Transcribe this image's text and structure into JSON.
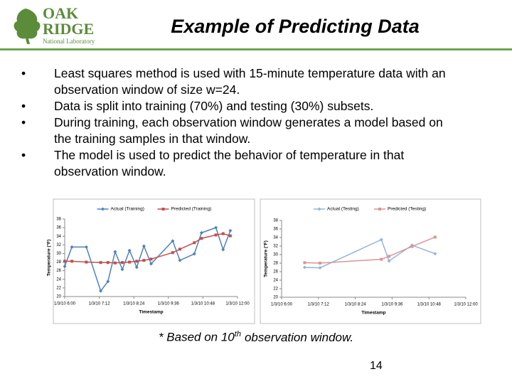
{
  "header": {
    "logo": {
      "name_top": "OAK",
      "name_bottom": "RIDGE",
      "subtitle": "National Laboratory"
    },
    "title": "Example of Predicting Data"
  },
  "bullets": [
    "Least squares method is used with 15-minute temperature data with an observation window of size w=24.",
    "Data is split into training (70%) and testing (30%) subsets.",
    "During training, each observation window generates a model based on the training samples in that window.",
    "The model is used to predict the behavior of temperature in that observation window."
  ],
  "chart_data": [
    {
      "type": "line",
      "x_label": "Timestamp",
      "y_label": "Temperature (°F)",
      "x": [
        6.0,
        6.25,
        6.75,
        7.25,
        7.5,
        7.75,
        8.0,
        8.25,
        8.5,
        8.75,
        9.0,
        9.75,
        10.0,
        10.5,
        10.75,
        11.25,
        11.5,
        11.75
      ],
      "series": [
        {
          "name": "Actual (Training)",
          "color": "#4f81bd",
          "marker": "diamond",
          "values": [
            27.0,
            31.5,
            31.5,
            21.3,
            23.5,
            30.4,
            26.3,
            30.7,
            26.8,
            31.7,
            27.6,
            32.9,
            28.4,
            29.9,
            34.8,
            36.0,
            30.9,
            35.3
          ]
        },
        {
          "name": "Predicted (Training)",
          "color": "#c0504d",
          "marker": "square",
          "values": [
            28.2,
            28.2,
            28.0,
            27.9,
            27.9,
            27.8,
            27.9,
            28.0,
            28.2,
            28.4,
            28.7,
            30.2,
            31.0,
            32.5,
            33.5,
            34.3,
            34.6,
            34.1
          ]
        }
      ],
      "xlim": [
        6,
        12
      ],
      "xticks": [
        {
          "value": 6,
          "label": "1/3/10 6:00"
        },
        {
          "value": 7.2,
          "label": "1/3/10 7:12"
        },
        {
          "value": 8.4,
          "label": "1/3/10 8:24"
        },
        {
          "value": 9.6,
          "label": "1/3/10 9:36"
        },
        {
          "value": 10.8,
          "label": "1/3/10 10:48"
        },
        {
          "value": 12,
          "label": "1/3/10 12:00"
        }
      ],
      "ylim": [
        20,
        38
      ],
      "yticks": [
        20,
        22,
        24,
        26,
        28,
        30,
        32,
        34,
        36,
        38
      ],
      "legend": "top"
    },
    {
      "type": "line",
      "x_label": "Timestamp",
      "y_label": "Temperature (°F)",
      "x": [
        6.75,
        7.25,
        9.25,
        9.5,
        10.25,
        11.0
      ],
      "series": [
        {
          "name": "Actual (Testing)",
          "color": "#95b3d7",
          "marker": "diamond",
          "values": [
            27.0,
            26.9,
            33.5,
            28.5,
            32.2,
            30.2
          ]
        },
        {
          "name": "Predicted (Testing)",
          "color": "#d99694",
          "marker": "square",
          "values": [
            28.1,
            28.0,
            28.9,
            29.6,
            31.9,
            34.1
          ]
        }
      ],
      "xlim": [
        6,
        12
      ],
      "xticks": [
        {
          "value": 6,
          "label": "1/3/10 6:00"
        },
        {
          "value": 7.2,
          "label": "1/3/10 7:12"
        },
        {
          "value": 8.4,
          "label": "1/3/10 8:24"
        },
        {
          "value": 9.6,
          "label": "1/3/10 9:36"
        },
        {
          "value": 10.8,
          "label": "1/3/10 10:48"
        },
        {
          "value": 12,
          "label": "1/3/10 12:00"
        }
      ],
      "ylim": [
        20,
        38
      ],
      "yticks": [
        20,
        22,
        24,
        26,
        28,
        30,
        32,
        34,
        36,
        38
      ],
      "legend": "top"
    }
  ],
  "footnote": {
    "before": "* Based on 10",
    "sup": "th",
    "after": "observation window."
  },
  "page_number": "14"
}
